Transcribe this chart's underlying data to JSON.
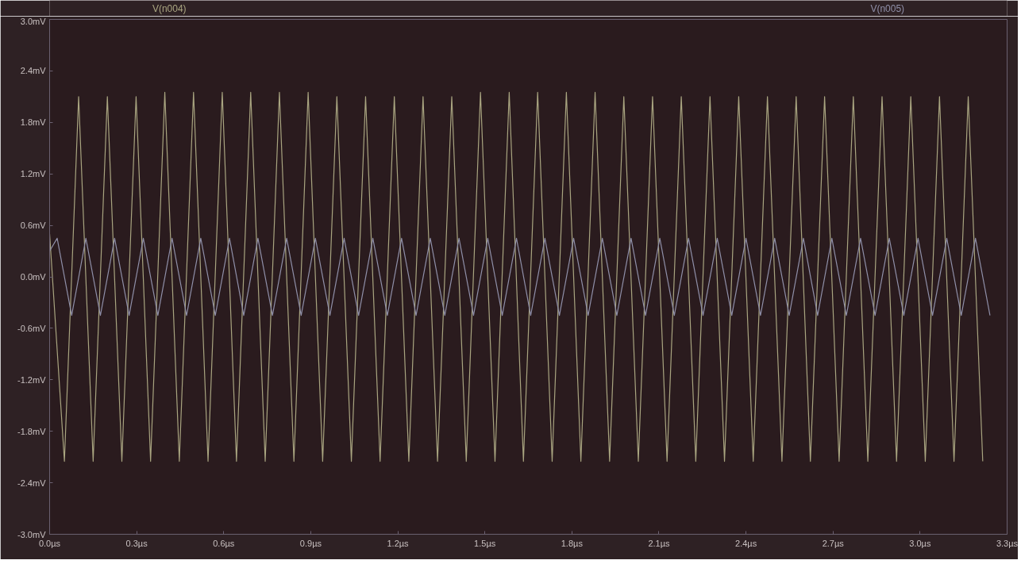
{
  "chart_data": {
    "type": "line",
    "x": [
      0.0,
      0.051,
      0.1,
      0.15,
      0.199,
      0.249,
      0.298,
      0.348,
      0.397,
      0.447,
      0.496,
      0.546,
      0.595,
      0.644,
      0.693,
      0.743,
      0.792,
      0.842,
      0.891,
      0.941,
      0.99,
      1.04,
      1.089,
      1.139,
      1.188,
      1.238,
      1.287,
      1.337,
      1.386,
      1.436,
      1.485,
      1.535,
      1.584,
      1.633,
      1.682,
      1.732,
      1.781,
      1.831,
      1.88,
      1.93,
      1.979,
      2.029,
      2.078,
      2.128,
      2.177,
      2.227,
      2.276,
      2.326,
      2.375,
      2.425,
      2.474,
      2.524,
      2.573,
      2.622,
      2.671,
      2.721,
      2.77,
      2.82,
      2.869,
      2.919,
      2.968,
      3.018,
      3.067,
      3.117,
      3.166,
      3.216
    ],
    "series": [
      {
        "name": "V(n004)",
        "color": "#a9a580",
        "values": [
          0.5,
          -2.15,
          2.1,
          -2.15,
          2.1,
          -2.15,
          2.1,
          -2.15,
          2.15,
          -2.15,
          2.15,
          -2.15,
          2.15,
          -2.15,
          2.15,
          -2.15,
          2.15,
          -2.15,
          2.15,
          -2.15,
          2.1,
          -2.15,
          2.1,
          -2.15,
          2.1,
          -2.15,
          2.1,
          -2.15,
          2.1,
          -2.15,
          2.15,
          -2.15,
          2.15,
          -2.15,
          2.15,
          -2.15,
          2.15,
          -2.15,
          2.15,
          -2.15,
          2.1,
          -2.15,
          2.1,
          -2.15,
          2.1,
          -2.15,
          2.1,
          -2.15,
          2.1,
          -2.15,
          2.1,
          -2.15,
          2.1,
          -2.15,
          2.1,
          -2.15,
          2.1,
          -2.15,
          2.1,
          -2.15,
          2.1,
          -2.15,
          2.1,
          -2.15,
          2.1,
          -2.15
        ]
      },
      {
        "name": "V(n005)",
        "color": "#8f8fa8",
        "x": [
          0.0,
          0.026,
          0.076,
          0.125,
          0.175,
          0.224,
          0.274,
          0.323,
          0.373,
          0.422,
          0.472,
          0.521,
          0.571,
          0.62,
          0.669,
          0.718,
          0.768,
          0.817,
          0.867,
          0.916,
          0.966,
          1.015,
          1.065,
          1.114,
          1.164,
          1.213,
          1.263,
          1.312,
          1.362,
          1.411,
          1.461,
          1.51,
          1.56,
          1.609,
          1.658,
          1.707,
          1.757,
          1.806,
          1.856,
          1.905,
          1.955,
          2.004,
          2.054,
          2.103,
          2.153,
          2.202,
          2.252,
          2.301,
          2.351,
          2.4,
          2.45,
          2.499,
          2.549,
          2.598,
          2.647,
          2.696,
          2.746,
          2.795,
          2.845,
          2.894,
          2.944,
          2.993,
          3.043,
          3.092,
          3.142,
          3.191,
          3.241
        ],
        "values": [
          0.3,
          0.45,
          -0.45,
          0.45,
          -0.45,
          0.45,
          -0.45,
          0.45,
          -0.45,
          0.45,
          -0.45,
          0.45,
          -0.45,
          0.45,
          -0.45,
          0.45,
          -0.45,
          0.45,
          -0.45,
          0.45,
          -0.45,
          0.45,
          -0.45,
          0.45,
          -0.45,
          0.45,
          -0.45,
          0.45,
          -0.45,
          0.45,
          -0.45,
          0.45,
          -0.45,
          0.45,
          -0.45,
          0.45,
          -0.45,
          0.45,
          -0.45,
          0.45,
          -0.45,
          0.45,
          -0.45,
          0.45,
          -0.45,
          0.45,
          -0.45,
          0.45,
          -0.45,
          0.45,
          -0.45,
          0.45,
          -0.45,
          0.45,
          -0.45,
          0.45,
          -0.45,
          0.45,
          -0.45,
          0.45,
          -0.45,
          0.45,
          -0.45,
          0.45,
          -0.45,
          0.45,
          -0.45
        ]
      }
    ],
    "xlim": [
      0,
      3.3
    ],
    "ylim": [
      -3.0,
      3.0
    ],
    "xticks": [
      {
        "value": 0,
        "label": "0.0µs"
      },
      {
        "value": 0.3,
        "label": "0.3µs"
      },
      {
        "value": 0.6,
        "label": "0.6µs"
      },
      {
        "value": 0.9,
        "label": "0.9µs"
      },
      {
        "value": 1.2,
        "label": "1.2µs"
      },
      {
        "value": 1.5,
        "label": "1.5µs"
      },
      {
        "value": 1.8,
        "label": "1.8µs"
      },
      {
        "value": 2.1,
        "label": "2.1µs"
      },
      {
        "value": 2.4,
        "label": "2.4µs"
      },
      {
        "value": 2.7,
        "label": "2.7µs"
      },
      {
        "value": 3.0,
        "label": "3.0µs"
      },
      {
        "value": 3.3,
        "label": "3.3µs"
      }
    ],
    "yticks": [
      {
        "value": -3.0,
        "label": "-3.0mV"
      },
      {
        "value": -2.4,
        "label": "-2.4mV"
      },
      {
        "value": -1.8,
        "label": "-1.8mV"
      },
      {
        "value": -1.2,
        "label": "-1.2mV"
      },
      {
        "value": -0.6,
        "label": "-0.6mV"
      },
      {
        "value": 0.0,
        "label": "0.0mV"
      },
      {
        "value": 0.6,
        "label": "0.6mV"
      },
      {
        "value": 1.2,
        "label": "1.2mV"
      },
      {
        "value": 1.8,
        "label": "1.8mV"
      },
      {
        "value": 2.4,
        "label": "2.4mV"
      },
      {
        "value": 3.0,
        "label": "3.0mV"
      }
    ],
    "grid": false,
    "marker": "none",
    "line_style": "solid"
  }
}
